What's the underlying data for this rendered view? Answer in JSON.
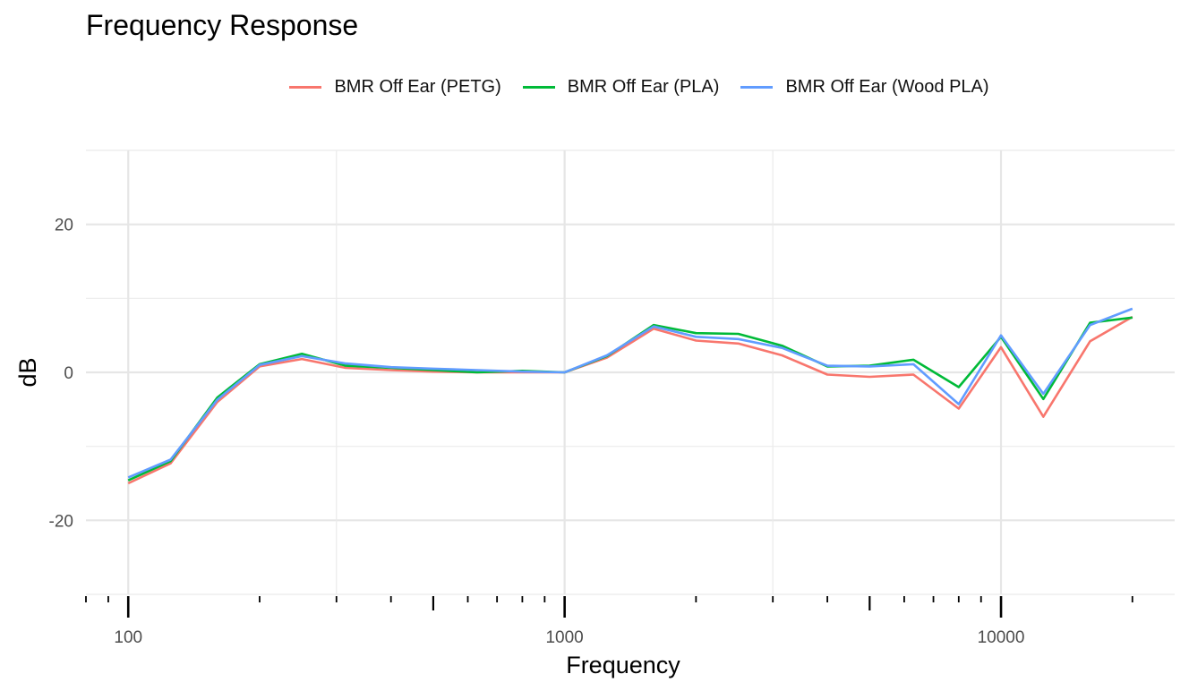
{
  "chart_data": {
    "type": "line",
    "title": "Frequency Response",
    "xlabel": "Frequency",
    "ylabel": "dB",
    "x_scale": "log10",
    "xlim": [
      80,
      25000
    ],
    "ylim": [
      -30,
      30
    ],
    "x_tick_labels": [
      "100",
      "1000",
      "10000"
    ],
    "y_tick_labels": [
      "-20",
      "0",
      "20"
    ],
    "grid": true,
    "legend_position": "top",
    "x": [
      100,
      125,
      160,
      200,
      250,
      315,
      400,
      500,
      630,
      800,
      1000,
      1250,
      1600,
      2000,
      2500,
      3150,
      4000,
      5000,
      6300,
      8000,
      10000,
      12500,
      16000,
      20000
    ],
    "series": [
      {
        "name": "BMR Off Ear (PETG)",
        "color": "#F8766D",
        "values": [
          -15.0,
          -12.3,
          -4.0,
          0.8,
          1.8,
          0.6,
          0.3,
          0.1,
          0.0,
          0.0,
          0.0,
          2.0,
          5.9,
          4.3,
          3.9,
          2.3,
          -0.3,
          -0.6,
          -0.3,
          -4.9,
          3.4,
          -6.0,
          4.2,
          7.5
        ]
      },
      {
        "name": "BMR Off Ear (PLA)",
        "color": "#00BA38",
        "values": [
          -14.6,
          -12.0,
          -3.4,
          1.1,
          2.5,
          0.9,
          0.6,
          0.3,
          0.0,
          0.2,
          0.0,
          2.2,
          6.4,
          5.3,
          5.2,
          3.6,
          0.8,
          0.9,
          1.7,
          -2.0,
          4.8,
          -3.6,
          6.7,
          7.4
        ]
      },
      {
        "name": "BMR Off Ear (Wood PLA)",
        "color": "#619CFF",
        "values": [
          -14.2,
          -11.8,
          -3.7,
          1.0,
          2.2,
          1.2,
          0.7,
          0.5,
          0.3,
          0.1,
          0.0,
          2.3,
          6.2,
          4.8,
          4.5,
          3.3,
          0.9,
          0.8,
          1.1,
          -4.3,
          5.0,
          -2.9,
          6.4,
          8.6
        ]
      }
    ]
  }
}
